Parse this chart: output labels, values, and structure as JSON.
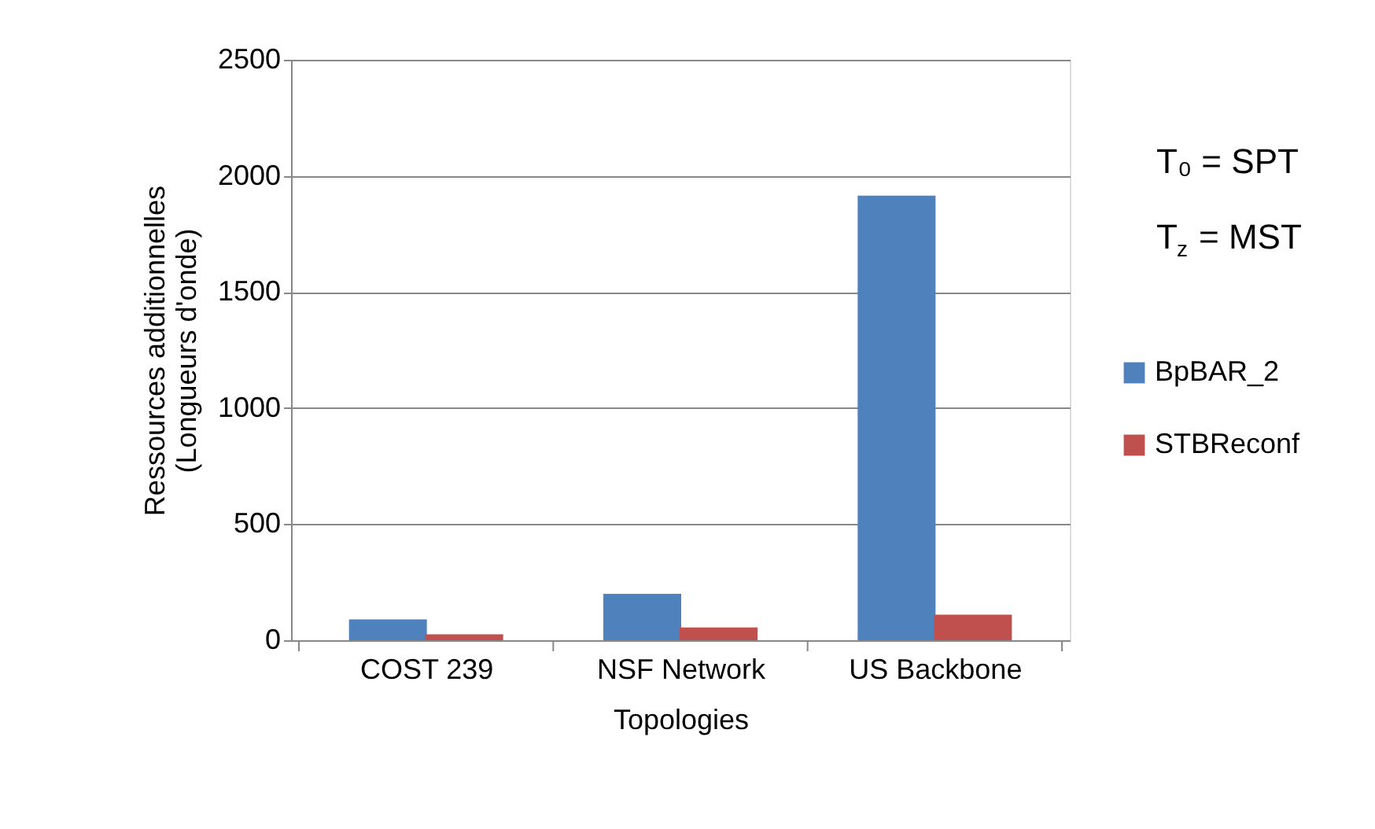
{
  "chart_data": {
    "type": "bar",
    "xlabel": "Topologies",
    "ylabel": "Ressources additionnelles\n(Longueurs d'onde)",
    "categories": [
      "COST 239",
      "NSF Network",
      "US Backbone"
    ],
    "series": [
      {
        "name": "BpBAR_2",
        "color": "#4f81bd",
        "values": [
          90,
          200,
          1915
        ]
      },
      {
        "name": "STBReconf",
        "color": "#c0504d",
        "values": [
          25,
          55,
          110
        ]
      }
    ],
    "ylim": [
      0,
      2500
    ],
    "yticks": [
      0,
      500,
      1000,
      1500,
      2000,
      2500
    ],
    "grid": "y",
    "legend": "right",
    "stacked": false,
    "annotations": [
      "T₀ = SPT",
      "T$_{z}$ = MST"
    ]
  }
}
